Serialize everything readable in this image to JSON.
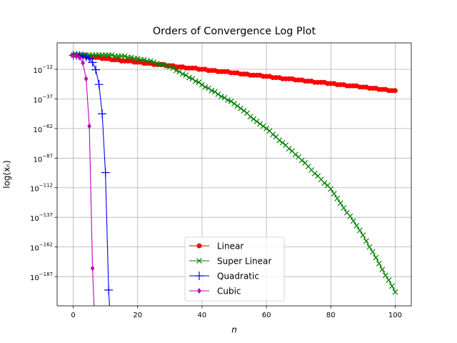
{
  "chart_data": {
    "type": "line",
    "title": "Orders of Convergence Log Plot",
    "x_label": "n",
    "y_label": "log(xₙ)",
    "xlim": [
      -5,
      105
    ],
    "xticks": [
      0,
      20,
      40,
      60,
      80,
      100
    ],
    "ylim": [
      2e-212,
      20000000000.0
    ],
    "ylog": true,
    "yticks": [
      {
        "value": 1e-12,
        "label": "10−12"
      },
      {
        "value": 1e-37,
        "label": "10−37"
      },
      {
        "value": 1e-62,
        "label": "10−62"
      },
      {
        "value": 1e-87,
        "label": "10−87"
      },
      {
        "value": 1e-112,
        "label": "10−112"
      },
      {
        "value": 1e-137,
        "label": "10−137"
      },
      {
        "value": 1e-162,
        "label": "10−162"
      },
      {
        "value": 1e-187,
        "label": "10−187"
      }
    ],
    "grid": true,
    "legend": "lower center",
    "x": [
      0,
      1,
      2,
      3,
      4,
      5,
      6,
      7,
      8,
      9,
      10,
      11,
      12,
      13,
      14,
      15,
      16,
      17,
      18,
      19,
      20,
      21,
      22,
      23,
      24,
      25,
      26,
      27,
      28,
      29,
      30,
      31,
      32,
      33,
      34,
      35,
      36,
      37,
      38,
      39,
      40,
      41,
      42,
      43,
      44,
      45,
      46,
      47,
      48,
      49,
      50,
      51,
      52,
      53,
      54,
      55,
      56,
      57,
      58,
      59,
      60,
      61,
      62,
      63,
      64,
      65,
      66,
      67,
      68,
      69,
      70,
      71,
      72,
      73,
      74,
      75,
      76,
      77,
      78,
      79,
      80,
      81,
      82,
      83,
      84,
      85,
      86,
      87,
      88,
      89,
      90,
      91,
      92,
      93,
      94,
      95,
      96,
      97,
      98,
      99,
      100
    ],
    "series": [
      {
        "name": "Linear",
        "color": "#ff0000",
        "marker": "o",
        "values": [
          1,
          0.5,
          0.25,
          0.125,
          0.0625,
          0.01,
          0.01,
          0.01,
          0.01,
          0.001,
          0.001,
          0.001,
          0.0001,
          0.0001,
          0.0001,
          1e-05,
          1e-05,
          1e-05,
          1e-05,
          1e-06,
          1e-06,
          1e-06,
          1e-07,
          1e-07,
          1e-07,
          1e-08,
          1e-08,
          1e-08,
          1e-08,
          1e-09,
          1e-09,
          1e-09,
          1e-10,
          1e-10,
          1e-10,
          1e-11,
          1e-11,
          1e-11,
          1e-11,
          1e-12,
          1e-12,
          1e-12,
          1e-13,
          1e-13,
          1e-13,
          1e-14,
          1e-14,
          1e-14,
          1e-14,
          1e-15,
          1e-15,
          1e-15,
          1e-16,
          1e-16,
          1e-16,
          1e-17,
          1e-17,
          1e-17,
          1e-17,
          1e-18,
          1e-18,
          1e-18,
          1e-19,
          1e-19,
          1e-19,
          1e-20,
          1e-20,
          1e-20,
          1e-20,
          1e-21,
          1e-21,
          1e-21,
          1e-22,
          1e-22,
          1e-22,
          1e-23,
          1e-23,
          1e-23,
          1e-23,
          1e-24,
          1e-24,
          1e-24,
          1e-25,
          1e-25,
          1e-25,
          1e-26,
          1e-26,
          1e-26,
          1e-26,
          1e-27,
          1e-27,
          1e-27,
          1e-28,
          1e-28,
          1e-28,
          1e-29,
          1e-29,
          1e-29,
          1e-30,
          1e-30,
          1e-30
        ]
      },
      {
        "name": "Super Linear",
        "color": "#008000",
        "marker": "x",
        "values": [
          1,
          1,
          1,
          1,
          1,
          1,
          1,
          1,
          1,
          1,
          1,
          1,
          1,
          0.1,
          0.1,
          0.1,
          0.1,
          0.01,
          0.01,
          0.001,
          0.001,
          0.0001,
          0.0001,
          1e-05,
          1e-05,
          1e-06,
          1e-07,
          1e-08,
          1e-08,
          1e-09,
          1e-10,
          1e-11,
          1e-13,
          1e-14,
          1e-16,
          1e-17,
          1e-19,
          1e-20,
          1e-22,
          1e-23,
          1e-25,
          1e-27,
          1e-28,
          1e-30,
          1e-31,
          1e-33,
          1e-35,
          1e-36,
          1e-38,
          1e-39,
          1e-41,
          1e-43,
          1e-45,
          1e-47,
          1e-49,
          1e-52,
          1e-54,
          1e-56,
          1e-58,
          1e-60,
          1e-62,
          1e-64,
          1e-67,
          1e-69,
          1e-72,
          1e-74,
          1e-76,
          1e-79,
          1e-81,
          1e-84,
          1e-86,
          1e-89,
          1e-91,
          1e-94,
          1e-97,
          1e-100,
          1e-102,
          1e-105,
          1e-108,
          1e-110,
          1e-113,
          1e-117,
          1e-121,
          1e-125,
          1e-129,
          1e-133,
          1e-136,
          1e-140,
          1e-144,
          1e-148,
          1e-152,
          1e-157,
          1e-162,
          1e-166,
          1e-171,
          1e-176,
          1e-181,
          1e-186,
          1e-190,
          1e-195,
          1e-200
        ]
      },
      {
        "name": "Quadratic",
        "color": "#0000ff",
        "marker": "+",
        "x": [
          0,
          1,
          2,
          3,
          4,
          5,
          6,
          7,
          8,
          9,
          10,
          11,
          12
        ],
        "values": [
          0.8,
          0.64,
          0.41,
          0.168,
          0.028,
          0.00079,
          6.3e-07,
          4e-13,
          1.6e-25,
          2.6e-50,
          6.6e-100,
          4.4e-199,
          0
        ]
      },
      {
        "name": "Cubic",
        "color": "#bf00bf",
        "marker": "d",
        "x": [
          0,
          1,
          2,
          3,
          4,
          5,
          6,
          7
        ],
        "values": [
          0.57,
          0.18,
          0.006,
          2.1e-07,
          1e-20,
          1e-60,
          1e-180,
          0
        ]
      }
    ]
  }
}
